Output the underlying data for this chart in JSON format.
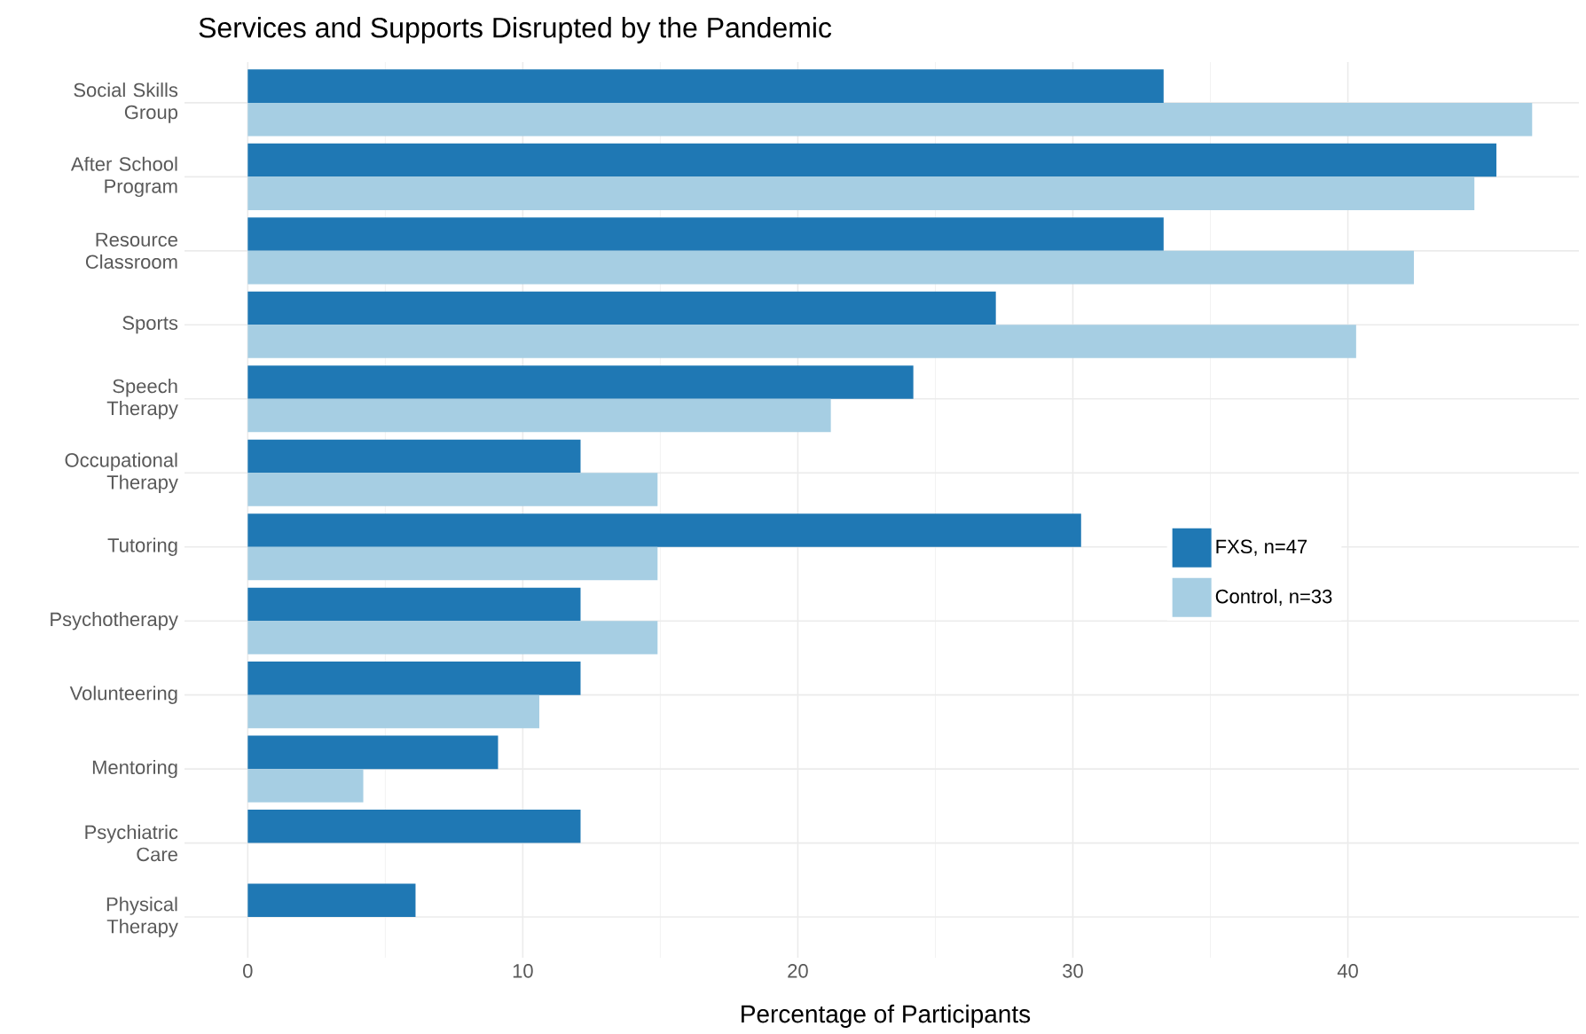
{
  "chart_data": {
    "type": "bar",
    "orientation": "horizontal",
    "title": "Services and Supports Disrupted by the Pandemic",
    "xlabel": "Percentage of Participants",
    "categories": [
      "Social Skills Group",
      "After School Program",
      "Resource Classroom",
      "Sports",
      "Speech Therapy",
      "Occupational Therapy",
      "Tutoring",
      "Psychotherapy",
      "Volunteering",
      "Mentoring",
      "Psychiatric Care",
      "Physical Therapy"
    ],
    "series": [
      {
        "name": "FXS, n=47",
        "color": "#1f78b4",
        "values": [
          33.3,
          45.4,
          33.3,
          27.2,
          24.2,
          12.1,
          30.3,
          12.1,
          12.1,
          9.1,
          12.1,
          6.1
        ]
      },
      {
        "name": "Control, n=33",
        "color": "#a6cee3",
        "values": [
          46.7,
          44.6,
          42.4,
          40.3,
          21.2,
          14.9,
          14.9,
          14.9,
          10.6,
          4.2,
          0,
          0
        ]
      }
    ],
    "xlim": [
      -2.3,
      48.4
    ],
    "xticks": [
      0,
      10,
      20,
      30,
      40
    ],
    "grid": true,
    "legend": "right"
  }
}
